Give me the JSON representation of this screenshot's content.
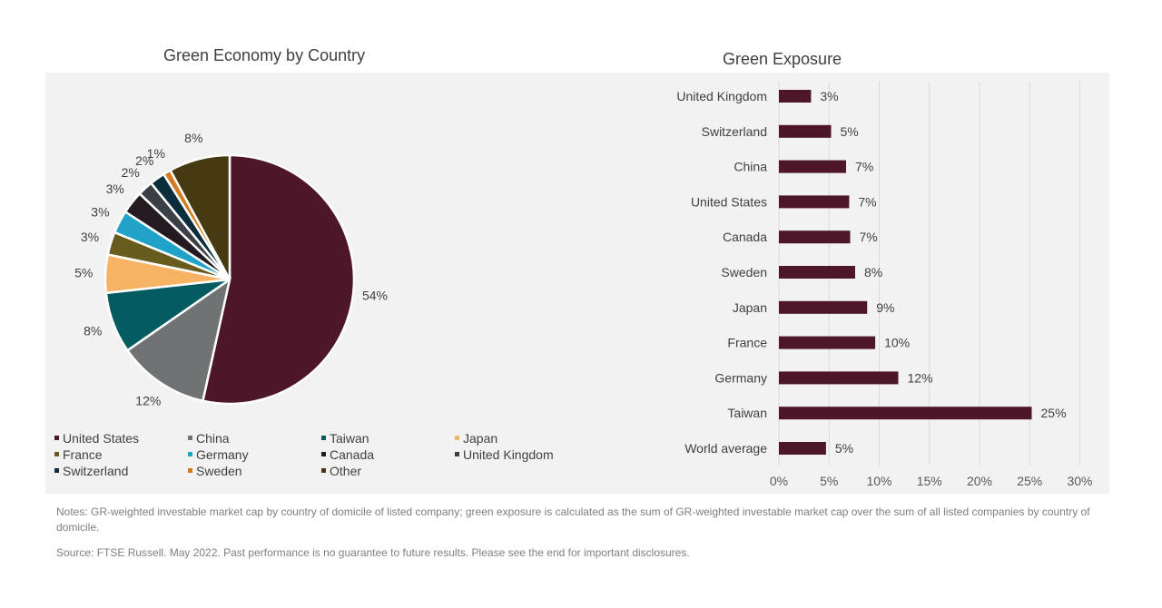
{
  "chart_data": [
    {
      "type": "pie",
      "title": "Green Economy by Country",
      "slices": [
        {
          "name": "United States",
          "value": 54,
          "label": "54%",
          "color": "#4e1729"
        },
        {
          "name": "China",
          "value": 12,
          "label": "12%",
          "color": "#6f7374"
        },
        {
          "name": "Taiwan",
          "value": 8,
          "label": "8%",
          "color": "#045c62"
        },
        {
          "name": "Japan",
          "value": 5,
          "label": "5%",
          "color": "#f5b363"
        },
        {
          "name": "France",
          "value": 3,
          "label": "3%",
          "color": "#675b1e"
        },
        {
          "name": "Germany",
          "value": 3,
          "label": "3%",
          "color": "#21a3c9"
        },
        {
          "name": "Canada",
          "value": 3,
          "label": "3%",
          "color": "#231a22"
        },
        {
          "name": "United Kingdom",
          "value": 2,
          "label": "2%",
          "color": "#3b3f46"
        },
        {
          "name": "Switzerland",
          "value": 2,
          "label": "2%",
          "color": "#0c2d3b"
        },
        {
          "name": "Sweden",
          "value": 1,
          "label": "1%",
          "color": "#d37b1e"
        },
        {
          "name": "Other",
          "value": 8,
          "label": "8%",
          "color": "#463a13"
        }
      ],
      "legend_position": "bottom"
    },
    {
      "type": "bar",
      "orientation": "horizontal",
      "title": "Green Exposure",
      "categories": [
        "United Kingdom",
        "Switzerland",
        "China",
        "United States",
        "Canada",
        "Sweden",
        "Japan",
        "France",
        "Germany",
        "Taiwan",
        "World average"
      ],
      "values": [
        3,
        5,
        7,
        7,
        7,
        8,
        9,
        10,
        12,
        25,
        5
      ],
      "value_labels": [
        "3%",
        "5%",
        "7%",
        "7%",
        "7%",
        "8%",
        "9%",
        "10%",
        "12%",
        "25%",
        "5%"
      ],
      "bar_values_exact": [
        3.2,
        5.2,
        6.7,
        7.0,
        7.1,
        7.6,
        8.8,
        9.6,
        11.9,
        25.2,
        4.7
      ],
      "xlim": [
        0,
        30
      ],
      "x_ticks": [
        "0%",
        "5%",
        "10%",
        "15%",
        "20%",
        "25%",
        "30%"
      ],
      "color": "#4e1729",
      "grid": true
    }
  ],
  "notes": "Notes: GR-weighted investable market cap by country of domicile of listed company; green exposure is calculated as the sum of GR-weighted investable market cap over the sum of all listed companies by country of domicile.",
  "source": "Source: FTSE Russell. May 2022. Past performance is no guarantee to future results. Please see the end for important disclosures."
}
